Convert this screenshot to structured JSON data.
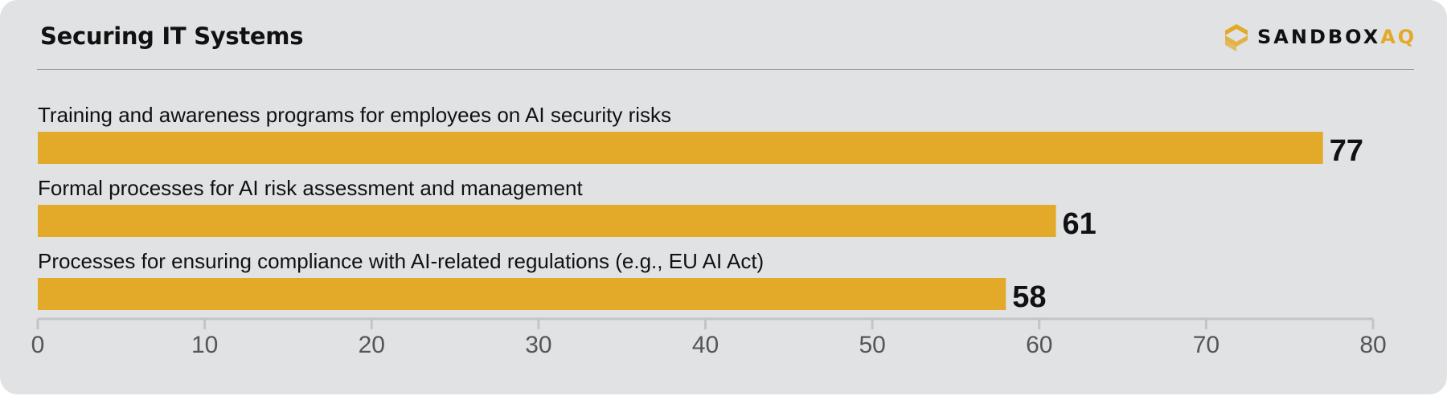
{
  "header": {
    "title": "Securing IT Systems",
    "logo_main": "SANDBOX",
    "logo_accent": "AQ"
  },
  "colors": {
    "bar": "#e3a928",
    "accent": "#e3a928",
    "text": "#111111",
    "axis": "#c3c4c7",
    "tick_text": "#555555"
  },
  "chart_data": {
    "type": "bar",
    "orientation": "horizontal",
    "title": "",
    "xlabel": "",
    "ylabel": "",
    "categories": [
      "Training and awareness programs for employees on AI security risks",
      "Formal processes for AI risk assessment and management",
      "Processes for ensuring compliance with AI-related regulations (e.g., EU AI Act)"
    ],
    "values": [
      77,
      61,
      58
    ],
    "value_labels": [
      "77",
      "61",
      "58"
    ],
    "xlim": [
      0,
      80
    ],
    "xticks": [
      0,
      10,
      20,
      30,
      40,
      50,
      60,
      70,
      80
    ],
    "xtick_labels": [
      "0",
      "10",
      "20",
      "30",
      "40",
      "50",
      "60",
      "70",
      "80"
    ],
    "grid": false,
    "legend": "none"
  }
}
